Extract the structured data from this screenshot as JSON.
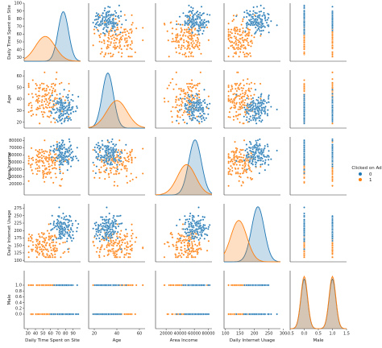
{
  "chart_data": {
    "type": "scatter",
    "kind": "pairplot",
    "hue": "Clicked on Ad",
    "diagonal": "kde",
    "variables": [
      {
        "name": "Daily Time Spent on Site",
        "range": [
          25,
          100
        ],
        "ticks": [
          20,
          30,
          40,
          50,
          60,
          70,
          80,
          90,
          100
        ],
        "ticklabels": [
          "20",
          "30",
          "40",
          "50",
          "60",
          "70",
          "80",
          "90",
          "100"
        ],
        "xticks": [
          30,
          40,
          50,
          60,
          70,
          80,
          90
        ],
        "xticklabels": [
          "30",
          "40",
          "50",
          "60",
          "70",
          "80",
          "90"
        ]
      },
      {
        "name": "Age",
        "range": [
          15,
          65
        ],
        "ticks": [
          20,
          30,
          40,
          50,
          60
        ],
        "ticklabels": [
          "20",
          "30",
          "40",
          "50",
          "60"
        ],
        "xticks": [
          20,
          40,
          60
        ],
        "xticklabels": [
          "20",
          "40",
          "60"
        ]
      },
      {
        "name": "Area Income",
        "range": [
          5000,
          85000
        ],
        "ticks": [
          20000,
          30000,
          40000,
          50000,
          60000,
          70000,
          80000
        ],
        "ticklabels": [
          "20000",
          "30000",
          "40000",
          "50000",
          "60000",
          "70000",
          "80000"
        ],
        "xticks": [
          20000,
          40000,
          60000,
          80000
        ],
        "xticklabels": [
          "20000",
          "40000",
          "60000",
          "80000"
        ]
      },
      {
        "name": "Daily Internet Usage",
        "range": [
          95,
          290
        ],
        "ticks": [
          100,
          125,
          150,
          175,
          200,
          225,
          250,
          275
        ],
        "ticklabels": [
          "100",
          "125",
          "150",
          "175",
          "200",
          "225",
          "250",
          "275"
        ],
        "xticks": [
          100,
          150,
          200,
          250,
          300
        ],
        "xticklabels": [
          "100",
          "150",
          "200",
          "250",
          "300"
        ]
      },
      {
        "name": "Male",
        "range": [
          -0.5,
          1.5
        ],
        "ticks": [
          0.0,
          0.2,
          0.4,
          0.6,
          0.8,
          1.0
        ],
        "ticklabels": [
          "0.0",
          "0.2",
          "0.4",
          "0.6",
          "0.8",
          "1.0"
        ],
        "xticks": [
          -0.5,
          0.0,
          0.5,
          1.0,
          1.5
        ],
        "xticklabels": [
          "-0.5",
          "0.0",
          "0.5",
          "1.0",
          "1.5"
        ]
      }
    ],
    "series": [
      {
        "name": "0",
        "color": "#1f77b4",
        "mean": [
          77,
          32,
          61000,
          212,
          0.47
        ],
        "sd": [
          7,
          5,
          9000,
          22,
          0.5
        ],
        "kde_peaks": [
          0.9,
          1.0,
          1.0,
          1.0,
          0.9
        ]
      },
      {
        "name": "1",
        "color": "#ff7f0e",
        "mean": [
          53,
          40,
          49000,
          146,
          0.5
        ],
        "sd": [
          13,
          9,
          13000,
          28,
          0.5
        ],
        "kde_peaks": [
          0.45,
          0.5,
          0.55,
          0.75,
          0.95
        ]
      }
    ],
    "legend": {
      "title": "Clicked on Ad",
      "labels": [
        "0",
        "1"
      ],
      "position": "right"
    }
  }
}
